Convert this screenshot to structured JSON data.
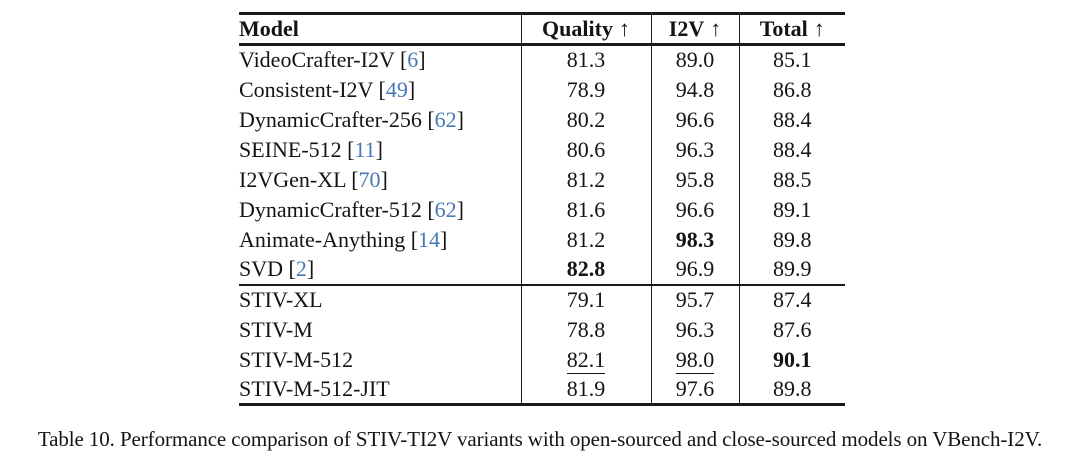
{
  "colors": {
    "citation_blue": "#4678b2",
    "text": "#141414",
    "rule": "#1a1a1a"
  },
  "caption": "Table 10. Performance comparison of STIV-TI2V variants with open-sourced and close-sourced models on VBench-I2V.",
  "table": {
    "columns": [
      {
        "label": "Model",
        "arrow": ""
      },
      {
        "label": "Quality",
        "arrow": "↑"
      },
      {
        "label": "I2V",
        "arrow": "↑"
      },
      {
        "label": "Total",
        "arrow": "↑"
      }
    ],
    "groups": [
      {
        "name": "open-sourced-models",
        "rows": [
          {
            "model": "VideoCrafter-I2V",
            "cite": "6",
            "quality": "81.3",
            "i2v": "89.0",
            "total": "85.1"
          },
          {
            "model": "Consistent-I2V",
            "cite": "49",
            "quality": "78.9",
            "i2v": "94.8",
            "total": "86.8"
          },
          {
            "model": "DynamicCrafter-256",
            "cite": "62",
            "quality": "80.2",
            "i2v": "96.6",
            "total": "88.4"
          },
          {
            "model": "SEINE-512",
            "cite": "11",
            "quality": "80.6",
            "i2v": "96.3",
            "total": "88.4"
          },
          {
            "model": "I2VGen-XL",
            "cite": "70",
            "quality": "81.2",
            "i2v": "95.8",
            "total": "88.5"
          },
          {
            "model": "DynamicCrafter-512",
            "cite": "62",
            "quality": "81.6",
            "i2v": "96.6",
            "total": "89.1"
          },
          {
            "model": "Animate-Anything",
            "cite": "14",
            "quality": "81.2",
            "i2v": "98.3",
            "total": "89.8",
            "i2v_style": "bold"
          },
          {
            "model": "SVD",
            "cite": "2",
            "quality": "82.8",
            "i2v": "96.9",
            "total": "89.9",
            "quality_style": "bold"
          }
        ]
      },
      {
        "name": "stiv-variants",
        "rows": [
          {
            "model": "STIV-XL",
            "cite": null,
            "quality": "79.1",
            "i2v": "95.7",
            "total": "87.4"
          },
          {
            "model": "STIV-M",
            "cite": null,
            "quality": "78.8",
            "i2v": "96.3",
            "total": "87.6"
          },
          {
            "model": "STIV-M-512",
            "cite": null,
            "quality": "82.1",
            "i2v": "98.0",
            "total": "90.1",
            "quality_style": "underline",
            "i2v_style": "underline",
            "total_style": "bold"
          },
          {
            "model": "STIV-M-512-JIT",
            "cite": null,
            "quality": "81.9",
            "i2v": "97.6",
            "total": "89.8"
          }
        ]
      }
    ]
  }
}
